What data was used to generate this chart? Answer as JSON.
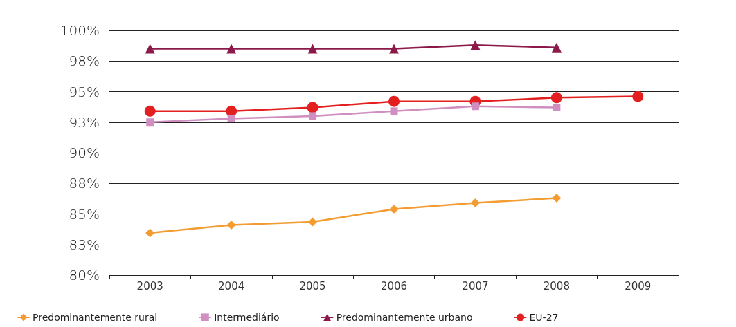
{
  "chart_data": {
    "type": "line",
    "categories": [
      "2003",
      "2004",
      "2005",
      "2006",
      "2007",
      "2008",
      "2009"
    ],
    "series": [
      {
        "name": "Predominantemente rural",
        "color": "#f39c32",
        "marker": "diamond",
        "values": [
          83.45,
          84.1,
          84.35,
          85.4,
          85.9,
          86.3,
          null
        ]
      },
      {
        "name": "Intermediário",
        "color": "#d08fc0",
        "marker": "square",
        "values": [
          92.5,
          92.8,
          93.0,
          93.4,
          93.8,
          93.7,
          null
        ]
      },
      {
        "name": "Predominantemente urbano",
        "color": "#8b1a4a",
        "marker": "triangle",
        "values": [
          98.5,
          98.5,
          98.5,
          98.5,
          98.8,
          98.6,
          null
        ]
      },
      {
        "name": "EU-27",
        "color": "#e3201f",
        "marker": "circle",
        "values": [
          93.4,
          93.4,
          93.7,
          94.2,
          94.2,
          94.5,
          94.6
        ]
      }
    ],
    "ylim": [
      80,
      100
    ],
    "yticks": [
      {
        "value": 80,
        "label": "80%"
      },
      {
        "value": 82.5,
        "label": "83%"
      },
      {
        "value": 85,
        "label": "85%"
      },
      {
        "value": 87.5,
        "label": "88%"
      },
      {
        "value": 90,
        "label": "90%"
      },
      {
        "value": 92.5,
        "label": "93%"
      },
      {
        "value": 95,
        "label": "95%"
      },
      {
        "value": 97.5,
        "label": "98%"
      },
      {
        "value": 100,
        "label": "100%"
      }
    ],
    "grid": "y",
    "legend": "bottom",
    "line_style": "solid"
  }
}
